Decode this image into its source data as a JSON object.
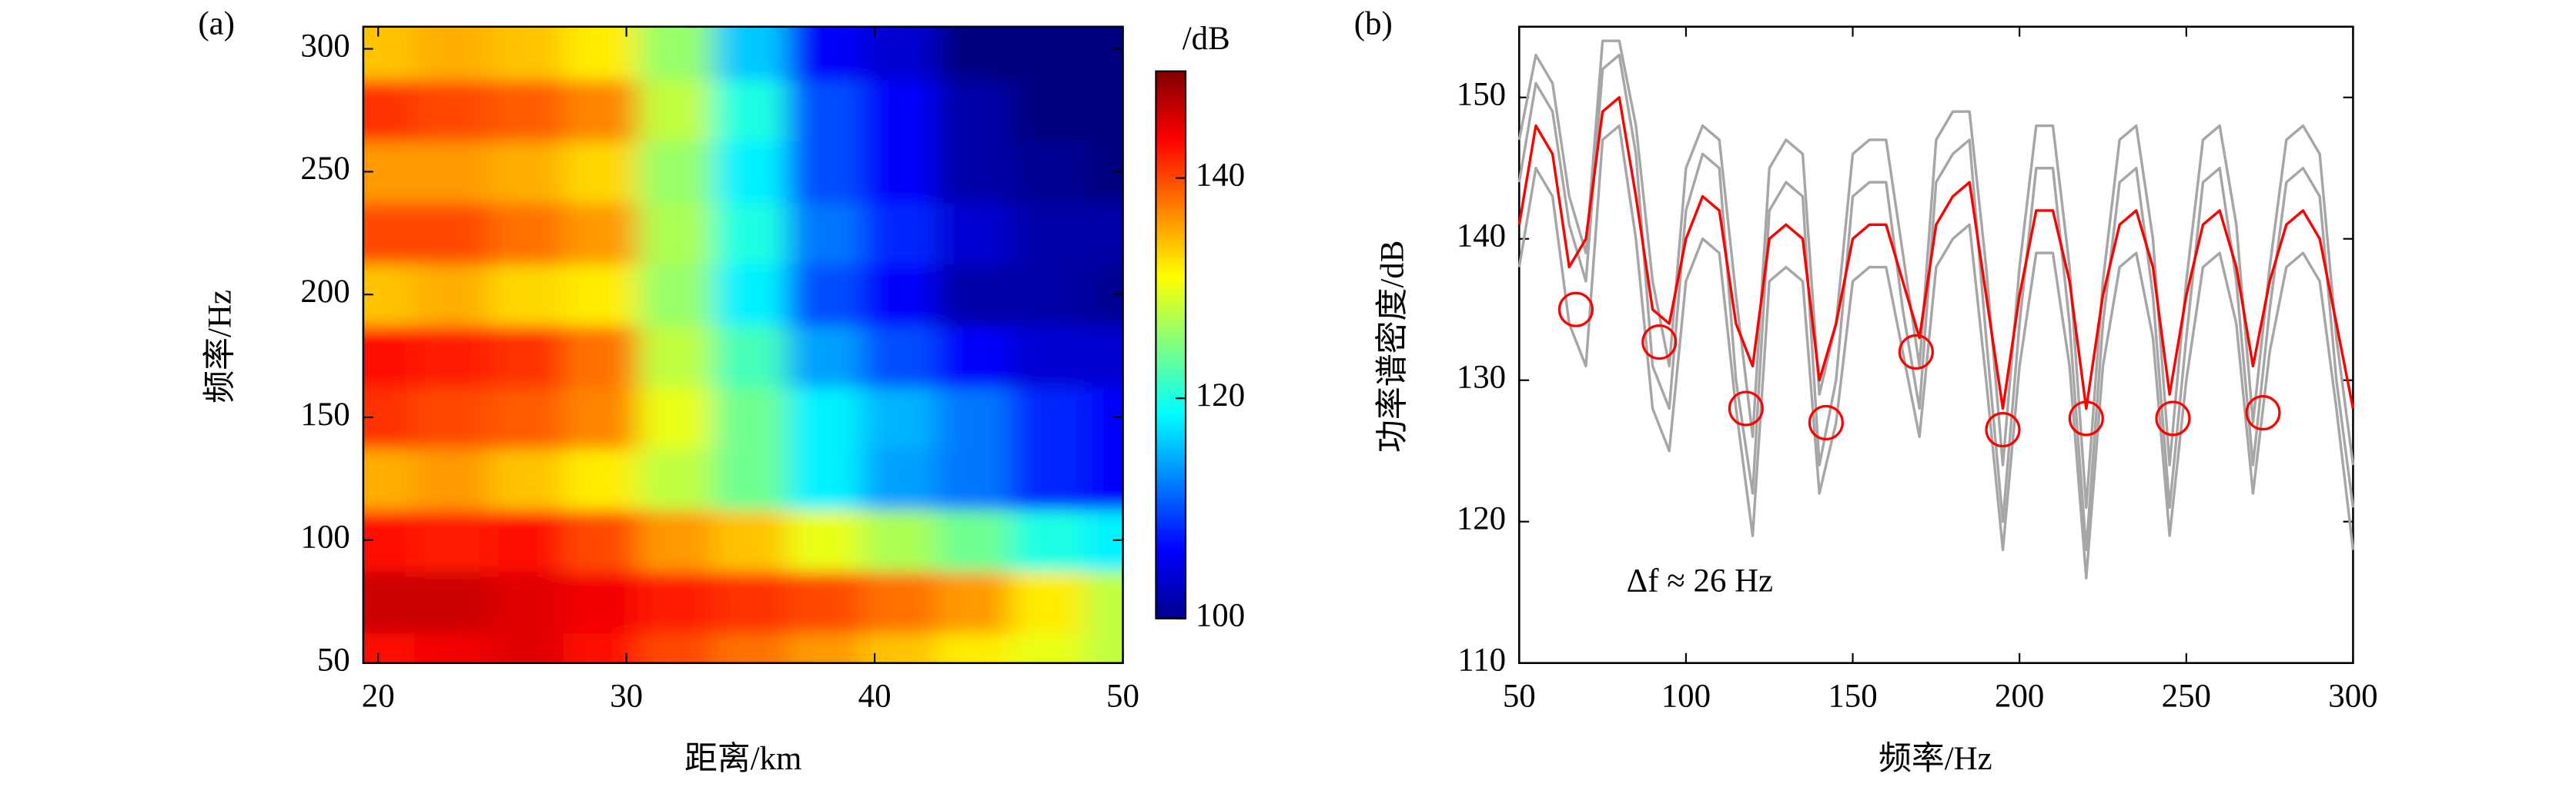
{
  "chart_data": [
    {
      "type": "heatmap",
      "panel": "(a)",
      "xlabel": "距离/km",
      "ylabel": "频率/Hz",
      "x": [
        20,
        23,
        26,
        29,
        32,
        35,
        38,
        41,
        44,
        47,
        50
      ],
      "y": [
        50,
        75,
        100,
        125,
        150,
        175,
        200,
        225,
        250,
        275,
        300
      ],
      "z": [
        [
          143,
          144,
          145,
          143,
          140,
          138,
          136,
          134,
          132,
          130,
          128
        ],
        [
          146,
          146,
          145,
          144,
          142,
          141,
          140,
          138,
          136,
          132,
          128
        ],
        [
          143,
          142,
          143,
          140,
          136,
          134,
          130,
          127,
          124,
          120,
          118
        ],
        [
          135,
          136,
          134,
          132,
          128,
          124,
          118,
          114,
          112,
          108,
          106
        ],
        [
          141,
          140,
          139,
          137,
          130,
          124,
          118,
          115,
          112,
          108,
          106
        ],
        [
          143,
          142,
          141,
          138,
          128,
          122,
          114,
          110,
          106,
          104,
          104
        ],
        [
          134,
          135,
          133,
          132,
          126,
          118,
          110,
          106,
          102,
          102,
          101
        ],
        [
          140,
          140,
          138,
          136,
          127,
          120,
          112,
          108,
          104,
          102,
          102
        ],
        [
          136,
          136,
          135,
          133,
          126,
          118,
          110,
          106,
          102,
          101,
          100
        ],
        [
          141,
          140,
          139,
          137,
          128,
          120,
          110,
          106,
          102,
          100,
          100
        ],
        [
          134,
          135,
          134,
          132,
          126,
          116,
          106,
          104,
          100,
          100,
          100
        ]
      ],
      "xlim": [
        19.4,
        50
      ],
      "xticks": [
        20,
        30,
        40,
        50
      ],
      "ylim": [
        50,
        309
      ],
      "yticks": [
        50,
        100,
        150,
        200,
        250,
        300
      ],
      "colormap": "jet",
      "colorbar_label": "/dB",
      "clim": [
        100,
        149.7
      ],
      "colorbar_ticks": [
        100,
        120,
        140
      ]
    },
    {
      "type": "line",
      "panel": "(b)",
      "xlabel": "频率/Hz",
      "ylabel": "功率谱密度/dB",
      "x": [
        50,
        55,
        60,
        65,
        70,
        75,
        80,
        85,
        90,
        95,
        100,
        105,
        110,
        115,
        120,
        125,
        130,
        135,
        140,
        145,
        150,
        155,
        160,
        165,
        170,
        175,
        180,
        185,
        190,
        195,
        200,
        205,
        210,
        215,
        220,
        225,
        230,
        235,
        240,
        245,
        250,
        255,
        260,
        265,
        270,
        275,
        280,
        285,
        290,
        295,
        300
      ],
      "series": [
        {
          "color": "#a6a6a6",
          "values": [
            144,
            151,
            149,
            141,
            137,
            152,
            153,
            146,
            131,
            128,
            142,
            146,
            145,
            130,
            122,
            142,
            144,
            143,
            124,
            130,
            143,
            144,
            144,
            135,
            128,
            144,
            146,
            147,
            133,
            120,
            134,
            145,
            145,
            134,
            118,
            134,
            144,
            145,
            136,
            121,
            133,
            144,
            145,
            137,
            124,
            135,
            144,
            145,
            143,
            130,
            121
          ]
        },
        {
          "color": "#a6a6a6",
          "values": [
            138,
            145,
            143,
            134,
            131,
            147,
            148,
            140,
            128,
            125,
            137,
            140,
            139,
            128,
            119,
            137,
            138,
            137,
            122,
            127,
            137,
            138,
            138,
            132,
            126,
            138,
            140,
            141,
            130,
            118,
            131,
            139,
            139,
            131,
            116,
            131,
            138,
            139,
            133,
            119,
            130,
            138,
            139,
            134,
            122,
            132,
            138,
            139,
            137,
            128,
            118
          ]
        },
        {
          "color": "#a6a6a6",
          "values": [
            147,
            153,
            151,
            143,
            139,
            154,
            154,
            148,
            137,
            131,
            145,
            148,
            147,
            136,
            126,
            145,
            147,
            146,
            129,
            134,
            146,
            147,
            147,
            139,
            131,
            147,
            149,
            149,
            138,
            124,
            138,
            148,
            148,
            138,
            121,
            137,
            147,
            148,
            140,
            124,
            137,
            147,
            148,
            141,
            127,
            138,
            147,
            148,
            146,
            133,
            124
          ]
        },
        {
          "color": "#ff0000",
          "values": [
            141,
            148,
            146,
            138,
            140,
            149,
            150,
            143,
            135,
            134,
            140,
            143,
            142,
            134,
            131,
            140,
            141,
            140,
            130,
            134,
            140,
            141,
            141,
            137,
            133,
            141,
            143,
            144,
            136,
            128,
            136,
            142,
            142,
            137,
            128,
            136,
            141,
            142,
            138,
            129,
            136,
            141,
            142,
            138,
            131,
            137,
            141,
            142,
            140,
            134,
            128
          ]
        }
      ],
      "markers": {
        "color": "#ff0000",
        "x": [
          67,
          92,
          118,
          142,
          169,
          195,
          220,
          246,
          273
        ],
        "y": [
          135,
          132.7,
          128,
          127,
          132,
          126.5,
          127.3,
          127.3,
          127.7
        ]
      },
      "annotation": "Δf ≈ 26 Hz",
      "xlim": [
        50,
        300
      ],
      "xticks": [
        50,
        100,
        150,
        200,
        250,
        300
      ],
      "ylim": [
        110,
        155
      ],
      "yticks": [
        110,
        120,
        130,
        140,
        150
      ]
    }
  ]
}
